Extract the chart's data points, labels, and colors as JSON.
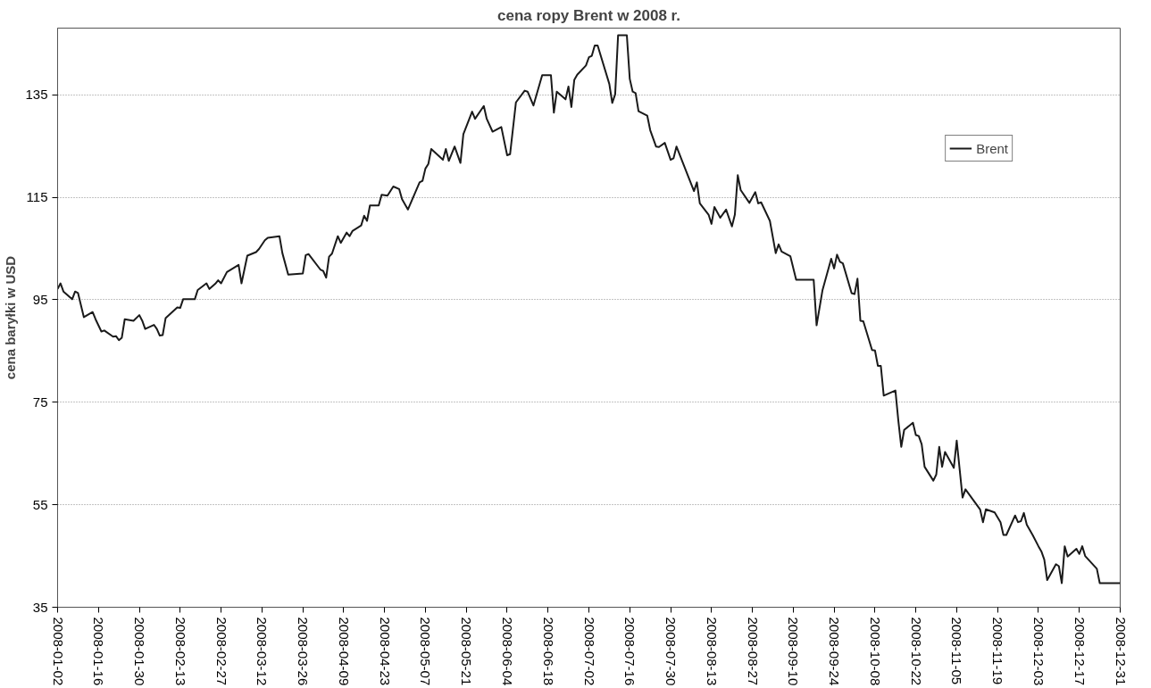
{
  "chart_data": {
    "type": "line",
    "title": "cena ropy Brent w 2008 r.",
    "ylabel": "cena baryłki w USD",
    "x": [
      "2008-01-02",
      "2008-01-03",
      "2008-01-04",
      "2008-01-07",
      "2008-01-08",
      "2008-01-09",
      "2008-01-11",
      "2008-01-14",
      "2008-01-15",
      "2008-01-17",
      "2008-01-18",
      "2008-01-21",
      "2008-01-22",
      "2008-01-23",
      "2008-01-24",
      "2008-01-25",
      "2008-01-28",
      "2008-01-30",
      "2008-01-31",
      "2008-02-01",
      "2008-02-04",
      "2008-02-05",
      "2008-02-06",
      "2008-02-07",
      "2008-02-08",
      "2008-02-12",
      "2008-02-13",
      "2008-02-14",
      "2008-02-18",
      "2008-02-19",
      "2008-02-22",
      "2008-02-23",
      "2008-02-25",
      "2008-02-26",
      "2008-02-27",
      "2008-02-29",
      "2008-03-04",
      "2008-03-05",
      "2008-03-06",
      "2008-03-07",
      "2008-03-10",
      "2008-03-11",
      "2008-03-13",
      "2008-03-14",
      "2008-03-18",
      "2008-03-19",
      "2008-03-21",
      "2008-03-26",
      "2008-03-27",
      "2008-03-28",
      "2008-04-01",
      "2008-04-02",
      "2008-04-03",
      "2008-04-04",
      "2008-04-05",
      "2008-04-07",
      "2008-04-08",
      "2008-04-10",
      "2008-04-11",
      "2008-04-12",
      "2008-04-15",
      "2008-04-16",
      "2008-04-17",
      "2008-04-18",
      "2008-04-21",
      "2008-04-22",
      "2008-04-24",
      "2008-04-26",
      "2008-04-28",
      "2008-04-29",
      "2008-05-01",
      "2008-05-05",
      "2008-05-06",
      "2008-05-07",
      "2008-05-08",
      "2008-05-09",
      "2008-05-13",
      "2008-05-14",
      "2008-05-15",
      "2008-05-17",
      "2008-05-19",
      "2008-05-20",
      "2008-05-23",
      "2008-05-24",
      "2008-05-27",
      "2008-05-28",
      "2008-05-30",
      "2008-06-02",
      "2008-06-04",
      "2008-06-05",
      "2008-06-07",
      "2008-06-10",
      "2008-06-11",
      "2008-06-13",
      "2008-06-16",
      "2008-06-19",
      "2008-06-20",
      "2008-06-21",
      "2008-06-24",
      "2008-06-25",
      "2008-06-26",
      "2008-06-27",
      "2008-06-28",
      "2008-07-01",
      "2008-07-02",
      "2008-07-03",
      "2008-07-04",
      "2008-07-05",
      "2008-07-09",
      "2008-07-10",
      "2008-07-11",
      "2008-07-12",
      "2008-07-15",
      "2008-07-16",
      "2008-07-17",
      "2008-07-18",
      "2008-07-19",
      "2008-07-22",
      "2008-07-23",
      "2008-07-25",
      "2008-07-26",
      "2008-07-28",
      "2008-07-30",
      "2008-07-31",
      "2008-08-01",
      "2008-08-07",
      "2008-08-08",
      "2008-08-09",
      "2008-08-12",
      "2008-08-13",
      "2008-08-14",
      "2008-08-16",
      "2008-08-18",
      "2008-08-20",
      "2008-08-21",
      "2008-08-22",
      "2008-08-23",
      "2008-08-26",
      "2008-08-28",
      "2008-08-29",
      "2008-08-30",
      "2008-09-02",
      "2008-09-04",
      "2008-09-05",
      "2008-09-06",
      "2008-09-09",
      "2008-09-11",
      "2008-09-17",
      "2008-09-18",
      "2008-09-20",
      "2008-09-23",
      "2008-09-24",
      "2008-09-25",
      "2008-09-26",
      "2008-09-27",
      "2008-09-30",
      "2008-10-01",
      "2008-10-02",
      "2008-10-03",
      "2008-10-04",
      "2008-10-07",
      "2008-10-08",
      "2008-10-09",
      "2008-10-10",
      "2008-10-11",
      "2008-10-15",
      "2008-10-16",
      "2008-10-17",
      "2008-10-18",
      "2008-10-21",
      "2008-10-22",
      "2008-10-23",
      "2008-10-24",
      "2008-10-25",
      "2008-10-28",
      "2008-10-29",
      "2008-10-30",
      "2008-10-31",
      "2008-11-01",
      "2008-11-04",
      "2008-11-05",
      "2008-11-07",
      "2008-11-08",
      "2008-11-13",
      "2008-11-14",
      "2008-11-15",
      "2008-11-18",
      "2008-11-20",
      "2008-11-21",
      "2008-11-22",
      "2008-11-25",
      "2008-11-26",
      "2008-11-27",
      "2008-11-28",
      "2008-11-29",
      "2008-12-01",
      "2008-12-03",
      "2008-12-04",
      "2008-12-05",
      "2008-12-06",
      "2008-12-09",
      "2008-12-10",
      "2008-12-11",
      "2008-12-12",
      "2008-12-13",
      "2008-12-16",
      "2008-12-17",
      "2008-12-18",
      "2008-12-19",
      "2008-12-23",
      "2008-12-24",
      "2008-12-31"
    ],
    "series": [
      {
        "name": "Brent",
        "color": "#1a1a1a",
        "values": [
          97.1,
          98.2,
          96.6,
          95.1,
          96.6,
          96.3,
          91.6,
          92.6,
          91.2,
          88.8,
          89.0,
          87.8,
          87.9,
          87.1,
          87.6,
          91.2,
          90.9,
          92.0,
          90.9,
          89.3,
          90.1,
          89.3,
          88.0,
          88.1,
          91.4,
          93.5,
          93.4,
          95.1,
          95.1,
          96.9,
          98.2,
          97.1,
          98.1,
          98.8,
          98.2,
          100.4,
          101.8,
          98.2,
          100.9,
          103.6,
          104.3,
          104.9,
          106.6,
          107.1,
          107.4,
          104.1,
          99.9,
          100.1,
          103.7,
          103.9,
          100.9,
          100.6,
          99.3,
          103.4,
          104.0,
          107.4,
          106.1,
          108.1,
          107.4,
          108.4,
          109.5,
          111.4,
          110.4,
          113.4,
          113.4,
          115.5,
          115.3,
          117.1,
          116.6,
          114.6,
          112.6,
          117.9,
          118.2,
          120.6,
          121.5,
          124.4,
          122.3,
          124.4,
          122.1,
          124.9,
          121.7,
          127.3,
          131.7,
          130.3,
          132.8,
          130.3,
          127.8,
          128.7,
          123.2,
          123.4,
          133.5,
          135.8,
          135.6,
          132.9,
          138.8,
          138.8,
          131.5,
          135.6,
          134.1,
          136.6,
          132.6,
          137.9,
          138.9,
          140.7,
          142.3,
          142.6,
          144.6,
          144.6,
          137.1,
          133.4,
          135.1,
          146.6,
          146.6,
          138.1,
          135.6,
          135.3,
          131.8,
          130.9,
          128.1,
          124.9,
          124.8,
          125.6,
          122.3,
          122.6,
          124.9,
          116.2,
          117.9,
          113.8,
          111.6,
          109.8,
          113.1,
          111.0,
          112.6,
          109.3,
          111.6,
          119.3,
          116.4,
          113.9,
          116.0,
          113.8,
          114.0,
          110.4,
          104.1,
          105.8,
          104.4,
          103.5,
          98.9,
          98.9,
          90.0,
          96.8,
          103.0,
          101.1,
          103.8,
          102.4,
          102.1,
          96.3,
          96.1,
          99.1,
          90.9,
          90.8,
          85.2,
          85.1,
          82.1,
          82.1,
          76.3,
          77.3,
          71.4,
          66.3,
          69.6,
          71.0,
          68.6,
          68.4,
          66.8,
          62.4,
          59.7,
          60.9,
          66.3,
          62.4,
          65.3,
          62.2,
          67.5,
          56.4,
          58.0,
          54.1,
          51.6,
          54.1,
          53.5,
          51.6,
          49.1,
          49.1,
          52.9,
          51.6,
          51.8,
          53.4,
          51.1,
          49.1,
          46.9,
          45.9,
          44.3,
          40.3,
          43.4,
          43.0,
          39.7,
          46.9,
          44.9,
          46.4,
          45.4,
          46.9,
          45.0,
          42.5,
          39.7,
          39.7
        ]
      }
    ],
    "xlim": [
      "2008-01-02",
      "2008-12-31"
    ],
    "xticks": [
      "2008-01-02",
      "2008-01-16",
      "2008-01-30",
      "2008-02-13",
      "2008-02-27",
      "2008-03-12",
      "2008-03-26",
      "2008-04-09",
      "2008-04-23",
      "2008-05-07",
      "2008-05-21",
      "2008-06-04",
      "2008-06-18",
      "2008-07-02",
      "2008-07-16",
      "2008-07-30",
      "2008-08-13",
      "2008-08-27",
      "2008-09-10",
      "2008-09-24",
      "2008-10-08",
      "2008-10-22",
      "2008-11-05",
      "2008-11-19",
      "2008-12-03",
      "2008-12-17",
      "2008-12-31"
    ],
    "ylim": [
      35,
      148
    ],
    "yticks": [
      35,
      55,
      75,
      95,
      115,
      135
    ],
    "grid": "y",
    "legend": "top right",
    "line_style": "solid"
  }
}
